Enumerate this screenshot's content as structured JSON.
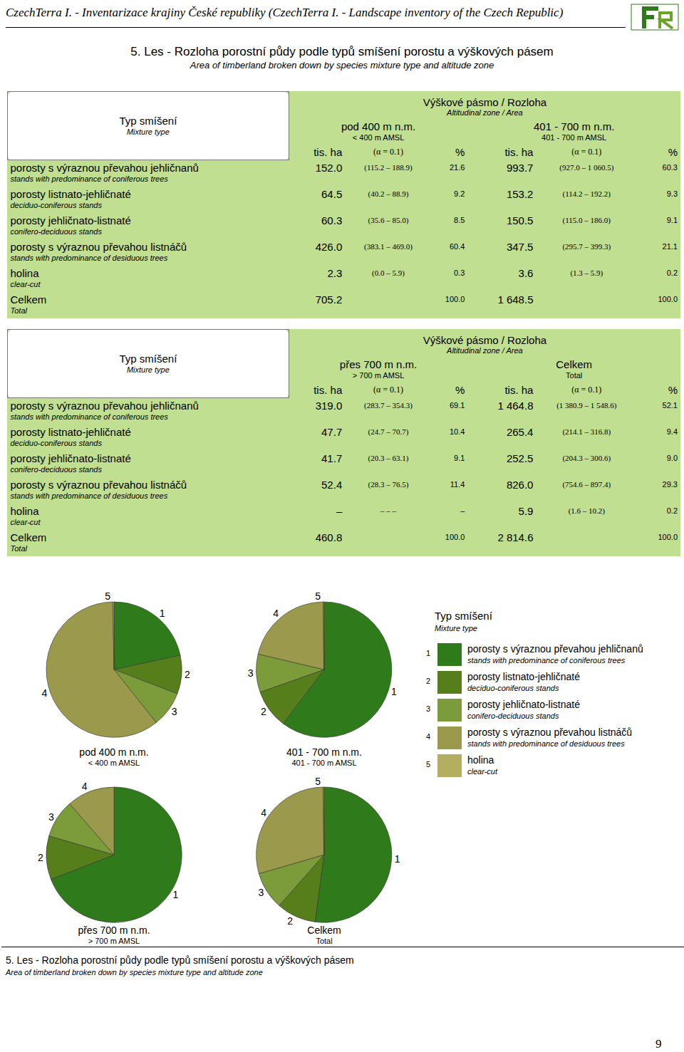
{
  "header": {
    "running_title": "CzechTerra I. - Inventarizace krajiny České republiky (CzechTerra I. - Landscape inventory of the Czech Republic)",
    "title": "5. Les - Rozloha porostní půdy podle typů smíšení porostu a výškových pásem",
    "subtitle": "Area of timberland broken down by species mixture type and altitude zone"
  },
  "tables": [
    {
      "row_head": "Typ smíšení",
      "row_head_en": "Mixture type",
      "group": "Výškové pásmo / Rozloha",
      "group_en": "Altitudinal zone / Area",
      "zones": [
        {
          "name": "pod 400 m n.m.",
          "en": "< 400 m AMSL"
        },
        {
          "name": "401 - 700 m n.m.",
          "en": "401 - 700 m AMSL"
        }
      ],
      "units": [
        "tis. ha",
        "(α = 0.1)",
        "%"
      ],
      "rows": [
        {
          "name": "porosty s výraznou převahou jehličnanů",
          "en": "stands with predominance of coniferous trees",
          "cells": [
            [
              "152.0",
              "(115.2 – 188.9)",
              "21.6"
            ],
            [
              "993.7",
              "(927.0 – 1 060.5)",
              "60.3"
            ]
          ]
        },
        {
          "name": "porosty listnato-jehličnaté",
          "en": "deciduo-coniferous stands",
          "cells": [
            [
              "64.5",
              "(40.2 – 88.9)",
              "9.2"
            ],
            [
              "153.2",
              "(114.2 – 192.2)",
              "9.3"
            ]
          ]
        },
        {
          "name": "porosty jehličnato-listnaté",
          "en": "conifero-deciduous stands",
          "cells": [
            [
              "60.3",
              "(35.6 – 85.0)",
              "8.5"
            ],
            [
              "150.5",
              "(115.0 – 186.0)",
              "9.1"
            ]
          ]
        },
        {
          "name": "porosty s výraznou převahou listnáčů",
          "en": "stands with predominance of desiduous trees",
          "cells": [
            [
              "426.0",
              "(383.1 – 469.0)",
              "60.4"
            ],
            [
              "347.5",
              "(295.7 – 399.3)",
              "21.1"
            ]
          ]
        },
        {
          "name": "holina",
          "en": "clear-cut",
          "cells": [
            [
              "2.3",
              "(0.0 – 5.9)",
              "0.3"
            ],
            [
              "3.6",
              "(1.3 – 5.9)",
              "0.2"
            ]
          ]
        },
        {
          "name": "Celkem",
          "en": "Total",
          "cells": [
            [
              "705.2",
              null,
              "100.0"
            ],
            [
              "1 648.5",
              null,
              "100.0"
            ]
          ]
        }
      ]
    },
    {
      "row_head": "Typ smíšení",
      "row_head_en": "Mixture type",
      "group": "Výškové pásmo / Rozloha",
      "group_en": "Altitudinal zone / Area",
      "zones": [
        {
          "name": "přes 700 m n.m.",
          "en": "> 700 m AMSL"
        },
        {
          "name": "Celkem",
          "en": "Total"
        }
      ],
      "units": [
        "tis. ha",
        "(α = 0.1)",
        "%"
      ],
      "rows": [
        {
          "name": "porosty s výraznou převahou jehličnanů",
          "en": "stands with predominance of coniferous trees",
          "cells": [
            [
              "319.0",
              "(283.7 – 354.3)",
              "69.1"
            ],
            [
              "1 464.8",
              "(1 380.9 – 1 548.6)",
              "52.1"
            ]
          ]
        },
        {
          "name": "porosty listnato-jehličnaté",
          "en": "deciduo-coniferous stands",
          "cells": [
            [
              "47.7",
              "(24.7 – 70.7)",
              "10.4"
            ],
            [
              "265.4",
              "(214.1 – 316.8)",
              "9.4"
            ]
          ]
        },
        {
          "name": "porosty jehličnato-listnaté",
          "en": "conifero-deciduous stands",
          "cells": [
            [
              "41.7",
              "(20.3 – 63.1)",
              "9.1"
            ],
            [
              "252.5",
              "(204.3 – 300.6)",
              "9.0"
            ]
          ]
        },
        {
          "name": "porosty s výraznou převahou listnáčů",
          "en": "stands with predominance of desiduous trees",
          "cells": [
            [
              "52.4",
              "(28.3 – 76.5)",
              "11.4"
            ],
            [
              "826.0",
              "(754.6 – 897.4)",
              "29.3"
            ]
          ]
        },
        {
          "name": "holina",
          "en": "clear-cut",
          "cells": [
            [
              "–",
              "–   –   –",
              "–"
            ],
            [
              "5.9",
              "(1.6 – 10.2)",
              "0.2"
            ]
          ]
        },
        {
          "name": "Celkem",
          "en": "Total",
          "cells": [
            [
              "460.8",
              null,
              "100.0"
            ],
            [
              "2 814.6",
              null,
              "100.0"
            ]
          ]
        }
      ]
    }
  ],
  "chart_data": [
    {
      "type": "pie",
      "title": "pod 400 m n.m.",
      "subtitle": "< 400 m AMSL",
      "labels": [
        "1",
        "2",
        "3",
        "4",
        "5"
      ],
      "values": [
        21.6,
        9.2,
        8.5,
        60.4,
        0.3
      ],
      "colors": [
        "#2f7a1a",
        "#567f1c",
        "#7c9b3a",
        "#9b9a4c",
        "#b3ae60"
      ]
    },
    {
      "type": "pie",
      "title": "401 - 700 m n.m.",
      "subtitle": "401 - 700 m AMSL",
      "labels": [
        "1",
        "2",
        "3",
        "4",
        "5"
      ],
      "values": [
        60.3,
        9.3,
        9.1,
        21.1,
        0.2
      ],
      "colors": [
        "#2f7a1a",
        "#567f1c",
        "#7c9b3a",
        "#9b9a4c",
        "#b3ae60"
      ]
    },
    {
      "type": "pie",
      "title": "přes 700 m n.m.",
      "subtitle": "> 700 m AMSL",
      "labels": [
        "1",
        "2",
        "3",
        "4"
      ],
      "values": [
        69.1,
        10.4,
        9.1,
        11.4
      ],
      "colors": [
        "#2f7a1a",
        "#567f1c",
        "#7c9b3a",
        "#9b9a4c"
      ]
    },
    {
      "type": "pie",
      "title": "Celkem",
      "subtitle": "Total",
      "labels": [
        "1",
        "2",
        "3",
        "4",
        "5"
      ],
      "values": [
        52.1,
        9.4,
        9.0,
        29.3,
        0.2
      ],
      "colors": [
        "#2f7a1a",
        "#567f1c",
        "#7c9b3a",
        "#9b9a4c",
        "#b3ae60"
      ]
    }
  ],
  "legend": {
    "title": "Typ smíšení",
    "title_en": "Mixture type",
    "items": [
      {
        "label": "1",
        "name": "porosty s výraznou převahou jehličnanů",
        "en": "stands with predominance of coniferous trees",
        "color": "#2f7a1a"
      },
      {
        "label": "2",
        "name": "porosty listnato-jehličnaté",
        "en": "deciduo-coniferous stands",
        "color": "#567f1c"
      },
      {
        "label": "3",
        "name": "porosty jehličnato-listnaté",
        "en": "conifero-deciduous stands",
        "color": "#7c9b3a"
      },
      {
        "label": "4",
        "name": "porosty s výraznou převahou listnáčů",
        "en": "stands with predominance of desiduous trees",
        "color": "#9b9a4c"
      },
      {
        "label": "5",
        "name": "holina",
        "en": "clear-cut",
        "color": "#b3ae60"
      }
    ]
  },
  "footer": {
    "title": "5. Les - Rozloha porostní půdy podle typů smíšení porostu a výškových pásem",
    "subtitle": "Area of timberland broken down by species mixture type and altitude zone"
  },
  "page_number": "9"
}
